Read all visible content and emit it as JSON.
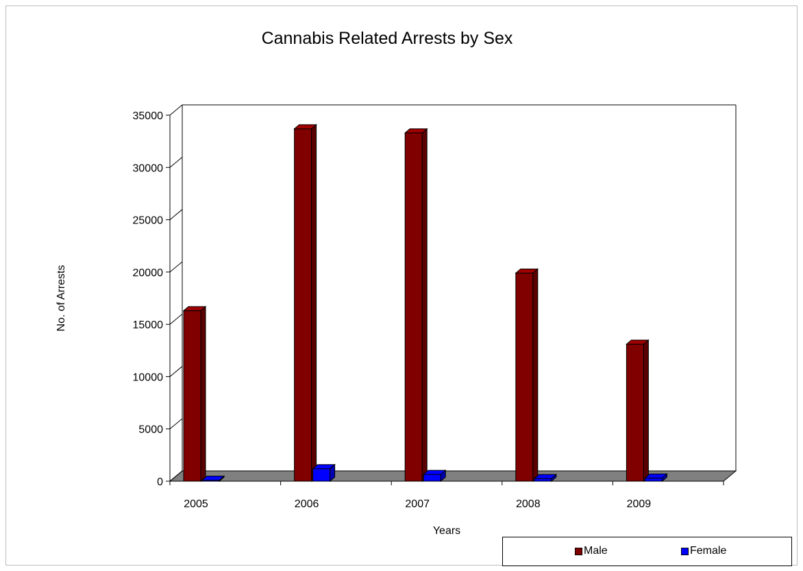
{
  "chart_data": {
    "type": "bar",
    "title": "Cannabis Related Arrests by Sex",
    "xlabel": "Years",
    "ylabel": "No. of Arrests",
    "categories": [
      "2005",
      "2006",
      "2007",
      "2008",
      "2009"
    ],
    "series": [
      {
        "name": "Male",
        "color": "#800000",
        "values": [
          16300,
          33700,
          33300,
          19900,
          13100
        ]
      },
      {
        "name": "Female",
        "color": "#0000ff",
        "values": [
          100,
          1200,
          650,
          250,
          300
        ]
      }
    ],
    "ylim": [
      0,
      35000
    ],
    "yticks": [
      "0",
      "5000",
      "10000",
      "15000",
      "20000",
      "25000",
      "30000",
      "35000"
    ],
    "grid": false,
    "legend_position": "bottom-right",
    "floor_color": "#808080"
  }
}
